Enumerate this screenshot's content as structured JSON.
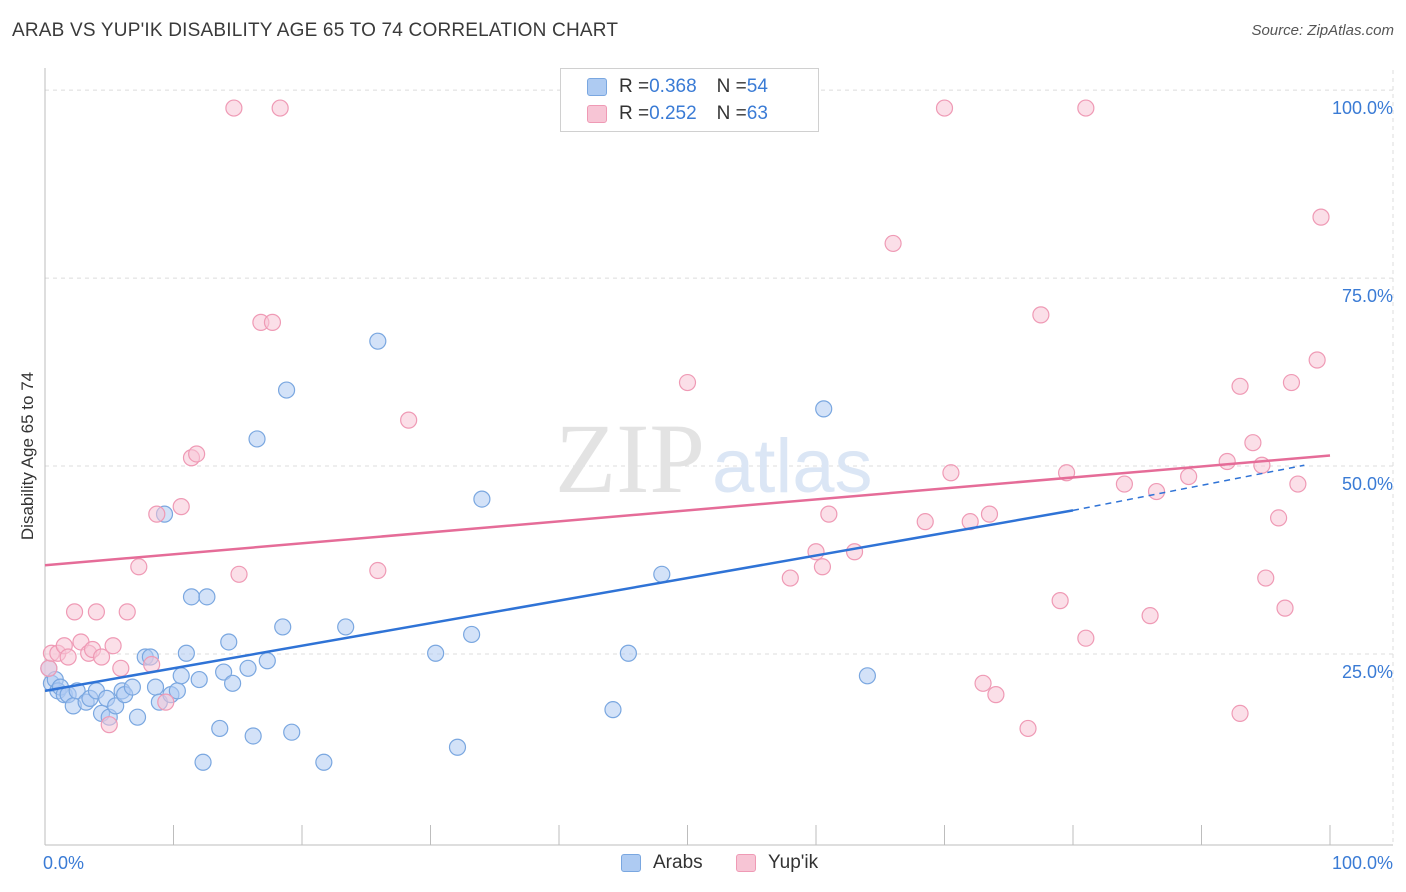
{
  "title": "ARAB VS YUP'IK DISABILITY AGE 65 TO 74 CORRELATION CHART",
  "source": "Source: ZipAtlas.com",
  "watermark": {
    "zip": "ZIP",
    "atlas": "atlas"
  },
  "colors": {
    "arabs_fill": "#aecbf2",
    "arabs_stroke": "#7aa7e0",
    "arabs_line": "#2f73d6",
    "yupik_fill": "#f7c5d5",
    "yupik_stroke": "#ef9ab5",
    "yupik_line": "#e56c98",
    "axis_label": "#3a7bd5"
  },
  "legend": {
    "arabs": {
      "r_label": "R = ",
      "r_value": "0.368",
      "n_label": "N = ",
      "n_value": "54"
    },
    "yupik": {
      "r_label": "R = ",
      "r_value": "0.252",
      "n_label": "N = ",
      "n_value": "63"
    }
  },
  "bottom_legend": {
    "arabs": "Arabs",
    "yupik": "Yup'ik"
  },
  "chart_data": {
    "type": "scatter",
    "title": "ARAB VS YUP'IK DISABILITY AGE 65 TO 74 CORRELATION CHART",
    "xlabel": "",
    "ylabel": "Disability Age 65 to 74",
    "xlim": [
      0,
      100
    ],
    "ylim": [
      2,
      104
    ],
    "x_tick_labels": [
      "0.0%",
      "100.0%"
    ],
    "y_ticks": [
      25,
      50,
      75,
      100
    ],
    "y_tick_labels": [
      "25.0%",
      "50.0%",
      "75.0%",
      "100.0%"
    ],
    "grid": true,
    "series": [
      {
        "name": "Arabs",
        "r": 0.368,
        "n": 54,
        "trend": {
          "x0": 0,
          "y0": 22.5,
          "x1": 80,
          "y1": 46.5,
          "dashed_to_x": 98,
          "dashed_to_y": 52.5
        },
        "points": [
          [
            0.3,
            25.5
          ],
          [
            0.5,
            23.5
          ],
          [
            0.8,
            24
          ],
          [
            1.0,
            22.5
          ],
          [
            1.2,
            23
          ],
          [
            1.5,
            22
          ],
          [
            1.8,
            22
          ],
          [
            2.2,
            20.5
          ],
          [
            2.5,
            22.5
          ],
          [
            3.2,
            21
          ],
          [
            3.5,
            21.5
          ],
          [
            4.0,
            22.5
          ],
          [
            4.4,
            19.5
          ],
          [
            4.8,
            21.5
          ],
          [
            5.0,
            19
          ],
          [
            5.5,
            20.5
          ],
          [
            6.0,
            22.5
          ],
          [
            6.2,
            22
          ],
          [
            6.8,
            23
          ],
          [
            7.2,
            19
          ],
          [
            7.8,
            27
          ],
          [
            8.2,
            27
          ],
          [
            8.6,
            23
          ],
          [
            8.9,
            21
          ],
          [
            9.3,
            46
          ],
          [
            9.8,
            22
          ],
          [
            10.3,
            22.5
          ],
          [
            10.6,
            24.5
          ],
          [
            11.0,
            27.5
          ],
          [
            11.4,
            35
          ],
          [
            12.0,
            24
          ],
          [
            12.3,
            13
          ],
          [
            12.6,
            35
          ],
          [
            13.6,
            17.5
          ],
          [
            13.9,
            25
          ],
          [
            14.3,
            29
          ],
          [
            14.6,
            23.5
          ],
          [
            15.8,
            25.5
          ],
          [
            16.2,
            16.5
          ],
          [
            16.5,
            56
          ],
          [
            17.3,
            26.5
          ],
          [
            18.5,
            31
          ],
          [
            18.8,
            62.5
          ],
          [
            19.2,
            17
          ],
          [
            21.7,
            13
          ],
          [
            23.4,
            31
          ],
          [
            25.9,
            69
          ],
          [
            30.4,
            27.5
          ],
          [
            32.1,
            15
          ],
          [
            33.2,
            30
          ],
          [
            34.0,
            48
          ],
          [
            44.2,
            20
          ],
          [
            45.4,
            27.5
          ],
          [
            48.0,
            38
          ],
          [
            60.6,
            60
          ],
          [
            64.0,
            24.5
          ]
        ]
      },
      {
        "name": "Yup'ik",
        "r": 0.252,
        "n": 63,
        "trend": {
          "x0": 0,
          "y0": 39.2,
          "x1": 100,
          "y1": 53.8
        },
        "points": [
          [
            0.3,
            25.5
          ],
          [
            0.5,
            27.5
          ],
          [
            1.0,
            27.5
          ],
          [
            1.5,
            28.5
          ],
          [
            1.8,
            27
          ],
          [
            2.3,
            33
          ],
          [
            2.8,
            29
          ],
          [
            3.4,
            27.5
          ],
          [
            3.7,
            28
          ],
          [
            4.0,
            33
          ],
          [
            4.4,
            27
          ],
          [
            5.0,
            18
          ],
          [
            5.3,
            28.5
          ],
          [
            5.9,
            25.5
          ],
          [
            6.4,
            33
          ],
          [
            7.3,
            39
          ],
          [
            8.3,
            26
          ],
          [
            8.7,
            46
          ],
          [
            9.4,
            21
          ],
          [
            10.6,
            47
          ],
          [
            11.4,
            53.5
          ],
          [
            11.8,
            54
          ],
          [
            15.1,
            38
          ],
          [
            16.8,
            71.5
          ],
          [
            17.7,
            71.5
          ],
          [
            25.9,
            38.5
          ],
          [
            28.3,
            58.5
          ],
          [
            14.7,
            100
          ],
          [
            18.3,
            100
          ],
          [
            50.0,
            63.5
          ],
          [
            58.0,
            37.5
          ],
          [
            60.0,
            41
          ],
          [
            60.5,
            39
          ],
          [
            61.0,
            46
          ],
          [
            63.0,
            41
          ],
          [
            66.0,
            82
          ],
          [
            68.5,
            45
          ],
          [
            70.5,
            51.5
          ],
          [
            72.0,
            45
          ],
          [
            73.0,
            23.5
          ],
          [
            73.5,
            46
          ],
          [
            74.0,
            22
          ],
          [
            76.5,
            17.5
          ],
          [
            77.5,
            72.5
          ],
          [
            79.0,
            34.5
          ],
          [
            79.5,
            51.5
          ],
          [
            81.0,
            29.5
          ],
          [
            84.0,
            50
          ],
          [
            86.0,
            32.5
          ],
          [
            86.5,
            49
          ],
          [
            89.0,
            51
          ],
          [
            92.0,
            53
          ],
          [
            93.0,
            19.5
          ],
          [
            93.0,
            63
          ],
          [
            94.0,
            55.5
          ],
          [
            94.7,
            52.5
          ],
          [
            95.0,
            37.5
          ],
          [
            96.0,
            45.5
          ],
          [
            96.5,
            33.5
          ],
          [
            97.0,
            63.5
          ],
          [
            97.5,
            50
          ],
          [
            99.0,
            66.5
          ],
          [
            99.3,
            85.5
          ],
          [
            70.0,
            100
          ],
          [
            81.0,
            100
          ]
        ]
      }
    ]
  }
}
